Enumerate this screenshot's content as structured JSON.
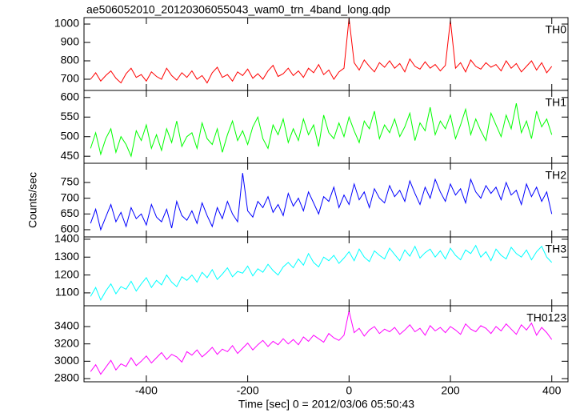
{
  "chart_data": {
    "type": "line",
    "title": "ae506052010_20120306055043_wam0_trn_4band_long.qdp",
    "xlabel": "Time [sec] 0 = 2012/03/06 05:50:43",
    "ylabel": "Counts/sec",
    "xlim": [
      -523,
      432
    ],
    "xticks": [
      -400,
      -200,
      0,
      200,
      400
    ],
    "x": [
      -510,
      -500,
      -490,
      -480,
      -470,
      -460,
      -450,
      -440,
      -430,
      -420,
      -410,
      -400,
      -390,
      -380,
      -370,
      -360,
      -350,
      -340,
      -330,
      -320,
      -310,
      -300,
      -290,
      -280,
      -270,
      -260,
      -250,
      -240,
      -230,
      -220,
      -210,
      -200,
      -190,
      -180,
      -170,
      -160,
      -150,
      -140,
      -130,
      -120,
      -110,
      -100,
      -90,
      -80,
      -70,
      -60,
      -50,
      -40,
      -30,
      -20,
      -10,
      0,
      10,
      20,
      30,
      40,
      50,
      60,
      70,
      80,
      90,
      100,
      110,
      120,
      130,
      140,
      150,
      160,
      170,
      180,
      190,
      200,
      210,
      220,
      230,
      240,
      250,
      260,
      270,
      280,
      290,
      300,
      310,
      320,
      330,
      340,
      350,
      360,
      370,
      380,
      390,
      400
    ],
    "series": [
      {
        "name": "TH0",
        "color": "#ff0000",
        "ylim": [
          639,
          1035
        ],
        "yticks": [
          700,
          800,
          900,
          1000
        ],
        "values": [
          700,
          735,
          690,
          720,
          745,
          705,
          680,
          730,
          760,
          710,
          725,
          690,
          740,
          715,
          700,
          760,
          720,
          695,
          735,
          710,
          745,
          700,
          720,
          680,
          735,
          765,
          710,
          725,
          690,
          740,
          720,
          755,
          705,
          730,
          700,
          745,
          775,
          715,
          730,
          760,
          720,
          745,
          710,
          760,
          735,
          780,
          725,
          750,
          700,
          740,
          760,
          1030,
          790,
          750,
          805,
          770,
          740,
          790,
          765,
          800,
          760,
          785,
          740,
          810,
          770,
          755,
          795,
          760,
          780,
          745,
          775,
          1020,
          760,
          790,
          740,
          805,
          770,
          755,
          790,
          765,
          780,
          745,
          800,
          760,
          785,
          740,
          770,
          800,
          750,
          790,
          735,
          770
        ]
      },
      {
        "name": "TH1",
        "color": "#00ff00",
        "ylim": [
          432,
          618
        ],
        "yticks": [
          450,
          500,
          550,
          600
        ],
        "values": [
          470,
          510,
          455,
          495,
          520,
          460,
          500,
          480,
          450,
          515,
          490,
          530,
          470,
          505,
          465,
          520,
          485,
          540,
          475,
          500,
          510,
          470,
          535,
          495,
          480,
          520,
          460,
          505,
          540,
          490,
          515,
          480,
          525,
          550,
          495,
          470,
          530,
          505,
          545,
          485,
          520,
          490,
          545,
          505,
          530,
          475,
          555,
          510,
          495,
          535,
          500,
          550,
          515,
          485,
          540,
          520,
          565,
          495,
          530,
          510,
          545,
          500,
          525,
          560,
          490,
          535,
          515,
          575,
          505,
          540,
          520,
          555,
          495,
          530,
          570,
          505,
          545,
          515,
          490,
          560,
          530,
          500,
          555,
          520,
          585,
          510,
          540,
          495,
          565,
          525,
          545,
          505
        ]
      },
      {
        "name": "TH2",
        "color": "#0000ff",
        "ylim": [
          577,
          811
        ],
        "yticks": [
          600,
          650,
          700,
          750
        ],
        "values": [
          620,
          665,
          600,
          640,
          680,
          625,
          655,
          610,
          670,
          635,
          650,
          615,
          680,
          640,
          625,
          665,
          605,
          690,
          645,
          630,
          660,
          620,
          685,
          645,
          610,
          670,
          635,
          690,
          650,
          625,
          780,
          660,
          640,
          690,
          670,
          705,
          655,
          680,
          645,
          715,
          675,
          700,
          660,
          720,
          685,
          650,
          705,
          690,
          735,
          670,
          710,
          680,
          745,
          695,
          720,
          670,
          730,
          700,
          685,
          740,
          705,
          725,
          690,
          755,
          715,
          680,
          735,
          700,
          760,
          720,
          690,
          745,
          710,
          730,
          685,
          760,
          720,
          700,
          740,
          715,
          735,
          695,
          750,
          710,
          725,
          680,
          745,
          705,
          735,
          690,
          720,
          650
        ]
      },
      {
        "name": "TH3",
        "color": "#00ffff",
        "ylim": [
          1028,
          1413
        ],
        "yticks": [
          1100,
          1200,
          1300,
          1400
        ],
        "values": [
          1080,
          1130,
          1060,
          1110,
          1150,
          1095,
          1135,
          1120,
          1165,
          1110,
          1150,
          1185,
          1130,
          1170,
          1145,
          1200,
          1160,
          1135,
          1190,
          1170,
          1200,
          1160,
          1215,
          1185,
          1230,
          1175,
          1205,
          1240,
          1190,
          1220,
          1210,
          1250,
          1195,
          1235,
          1215,
          1260,
          1225,
          1200,
          1245,
          1270,
          1240,
          1290,
          1255,
          1320,
          1270,
          1245,
          1300,
          1280,
          1310,
          1265,
          1295,
          1330,
          1280,
          1345,
          1300,
          1275,
          1335,
          1310,
          1290,
          1350,
          1315,
          1280,
          1340,
          1305,
          1360,
          1295,
          1325,
          1345,
          1300,
          1335,
          1290,
          1350,
          1310,
          1285,
          1340,
          1320,
          1365,
          1300,
          1330,
          1280,
          1345,
          1310,
          1290,
          1355,
          1320,
          1300,
          1340,
          1285,
          1330,
          1360,
          1300,
          1270
        ]
      },
      {
        "name": "TH0123",
        "color": "#ff00ff",
        "ylim": [
          2763,
          3640
        ],
        "yticks": [
          2800,
          3000,
          3200,
          3400
        ],
        "values": [
          2880,
          2960,
          2850,
          2930,
          3010,
          2900,
          2970,
          2940,
          3040,
          2950,
          3000,
          3060,
          2980,
          3040,
          3100,
          3020,
          3080,
          3050,
          2990,
          3110,
          3070,
          3130,
          3050,
          3100,
          3160,
          3080,
          3140,
          3110,
          3180,
          3090,
          3150,
          3210,
          3130,
          3190,
          3240,
          3170,
          3230,
          3190,
          3260,
          3200,
          3250,
          3190,
          3280,
          3230,
          3300,
          3260,
          3220,
          3320,
          3270,
          3240,
          3300,
          3580,
          3330,
          3380,
          3290,
          3360,
          3400,
          3320,
          3370,
          3340,
          3390,
          3310,
          3360,
          3420,
          3340,
          3380,
          3300,
          3410,
          3350,
          3390,
          3330,
          3400,
          3360,
          3310,
          3430,
          3370,
          3340,
          3410,
          3380,
          3320,
          3400,
          3350,
          3430,
          3370,
          3310,
          3420,
          3360,
          3440,
          3300,
          3390,
          3330,
          3250
        ]
      }
    ]
  }
}
